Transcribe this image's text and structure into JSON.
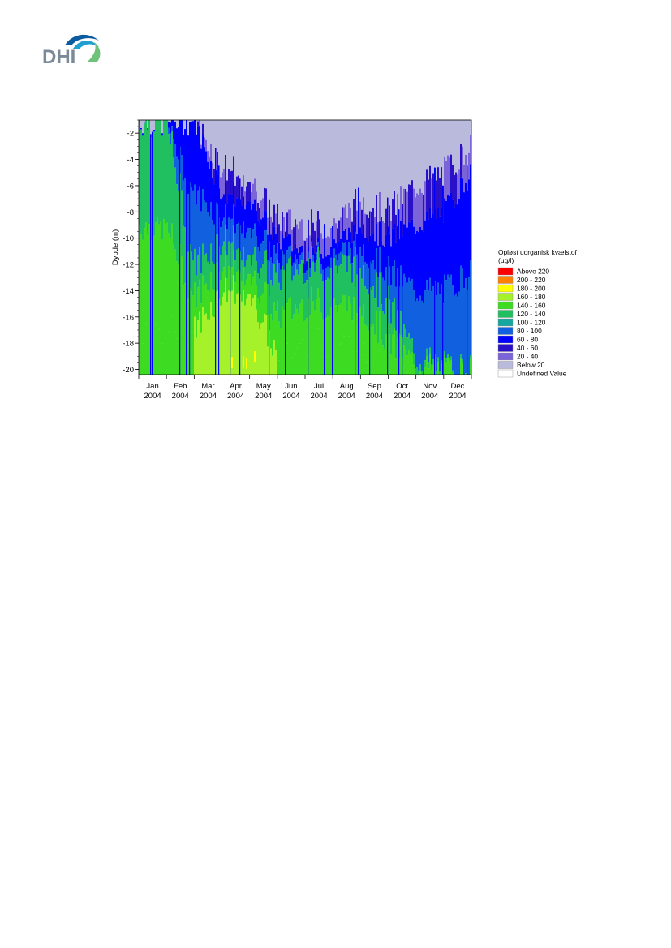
{
  "logo": {
    "text": "DHI",
    "colors": {
      "text": "#7a8a98",
      "wave_dark": "#0a5ba0",
      "wave_mid": "#20a0d0",
      "wave_light": "#6fc27a"
    }
  },
  "chart_data": {
    "type": "heatmap",
    "title": "",
    "xlabel": "",
    "ylabel": "Dybde (m)",
    "x": {
      "ticks": [
        {
          "month": "Jan",
          "year": "2004"
        },
        {
          "month": "Feb",
          "year": "2004"
        },
        {
          "month": "Mar",
          "year": "2004"
        },
        {
          "month": "Apr",
          "year": "2004"
        },
        {
          "month": "May",
          "year": "2004"
        },
        {
          "month": "Jun",
          "year": "2004"
        },
        {
          "month": "Jul",
          "year": "2004"
        },
        {
          "month": "Aug",
          "year": "2004"
        },
        {
          "month": "Sep",
          "year": "2004"
        },
        {
          "month": "Oct",
          "year": "2004"
        },
        {
          "month": "Nov",
          "year": "2004"
        },
        {
          "month": "Dec",
          "year": "2004"
        }
      ],
      "range": [
        "2004-01-01",
        "2004-12-31"
      ]
    },
    "y": {
      "ticks": [
        -2,
        -4,
        -6,
        -8,
        -10,
        -12,
        -14,
        -16,
        -18,
        -20
      ],
      "range": [
        -20.4,
        -1
      ]
    },
    "legend": {
      "title_line1": "Opløst uorganisk kvælstof",
      "title_line2": "(µg/l)",
      "placement": "right",
      "classes": [
        {
          "label": "Above 220",
          "color": "#ff0000"
        },
        {
          "label": "200 - 220",
          "color": "#ff8000"
        },
        {
          "label": "180 - 200",
          "color": "#ffff00"
        },
        {
          "label": "160 - 180",
          "color": "#a6f22a"
        },
        {
          "label": "140 - 160",
          "color": "#3ddc22"
        },
        {
          "label": "120 - 140",
          "color": "#20c060"
        },
        {
          "label": "100 - 120",
          "color": "#16a6a0"
        },
        {
          "label": "80 - 100",
          "color": "#1060e0"
        },
        {
          "label": "60 - 80",
          "color": "#0000ff"
        },
        {
          "label": "40 - 60",
          "color": "#2a10c8"
        },
        {
          "label": "20 - 40",
          "color": "#7a64d8"
        },
        {
          "label": "Below 20",
          "color": "#babadc"
        },
        {
          "label": "Undefined Value",
          "color": "#ffffff"
        }
      ]
    },
    "boundaries": {
      "description_units": "depth (m) per month start, approximate",
      "months": [
        "Jan",
        "Feb",
        "Mar",
        "Apr",
        "May",
        "Jun",
        "Jul",
        "Aug",
        "Sep",
        "Oct",
        "Nov",
        "Dec",
        "Dec-end"
      ],
      "surface_20": [
        -1,
        -1,
        -1,
        -4.5,
        -5.5,
        -8.5,
        -9,
        -9,
        -7,
        -8,
        -6,
        -5,
        -3
      ],
      "edge_60": [
        -1,
        -1,
        -1,
        -6.5,
        -7,
        -10,
        -11,
        -10.5,
        -9,
        -10,
        -9,
        -8,
        -5
      ],
      "edge_120": [
        -1,
        -1,
        -12,
        -10,
        -11,
        -13,
        -12,
        -12,
        -12,
        -15,
        -19,
        -20,
        -20
      ],
      "edge_160": [
        -17,
        -17,
        -17,
        -14,
        -14,
        -19,
        -18,
        -18,
        -18,
        -20.4,
        -20.4,
        -20.4,
        -20.4
      ]
    }
  }
}
